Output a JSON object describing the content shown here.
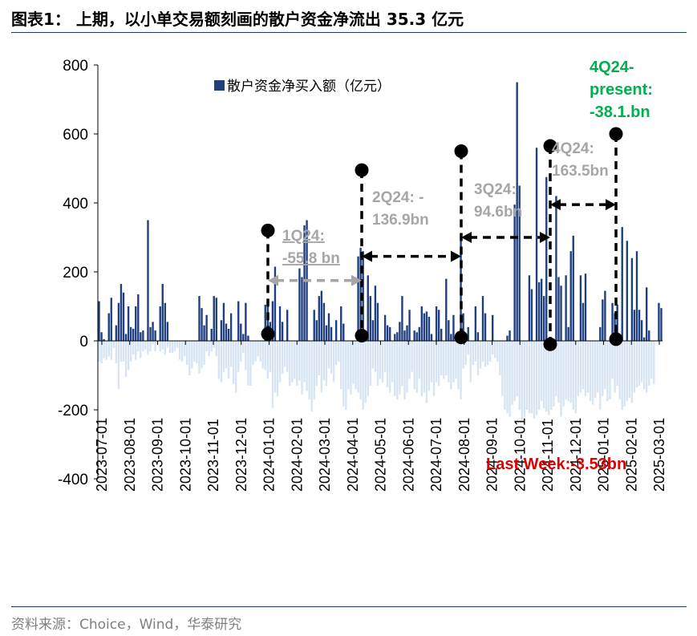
{
  "title": "图表1： 上期，以小单交易额刻画的散户资金净流出 35.3 亿元",
  "source": "资料来源：Choice，Wind，华泰研究",
  "chart_data": {
    "type": "bar",
    "legend": "散户资金净买入额（亿元）",
    "legend_position": "top-left",
    "grid": false,
    "ylim": [
      -400,
      800
    ],
    "yticks": [
      "800",
      "600",
      "400",
      "200",
      "0",
      "-200",
      "-400"
    ],
    "xticks": [
      "2023-07-01",
      "2023-08-01",
      "2023-09-01",
      "2023-10-01",
      "2023-11-01",
      "2023-12-01",
      "2024-01-01",
      "2024-02-01",
      "2024-03-01",
      "2024-04-01",
      "2024-05-01",
      "2024-06-01",
      "2024-07-01",
      "2024-08-01",
      "2024-09-01",
      "2024-10-01",
      "2024-11-01",
      "2024-12-01",
      "2025-01-01",
      "2025-02-01",
      "2025-03-01"
    ],
    "colors": {
      "positive": "#1f3f7f",
      "negative": "#d6e4f3",
      "black": "#000000",
      "gray_arrow": "#a6a6a6"
    },
    "series": [
      {
        "name": "散户资金净买入额（亿元）",
        "note": "daily values, 2023-07-01 to 2025-03-05 (approx.)"
      }
    ],
    "positive_values": [
      115,
      25,
      5,
      0,
      80,
      125,
      0,
      45,
      110,
      165,
      140,
      20,
      100,
      40,
      35,
      100,
      135,
      25,
      30,
      0,
      350,
      40,
      55,
      30,
      0,
      100,
      165,
      110,
      55,
      0,
      0,
      0,
      0,
      0,
      0,
      0,
      0,
      0,
      0,
      0,
      0,
      130,
      95,
      45,
      75,
      0,
      35,
      130,
      125,
      0,
      60,
      110,
      50,
      35,
      80,
      0,
      0,
      115,
      50,
      20,
      110,
      15,
      0,
      0,
      0,
      0,
      0,
      0,
      105,
      100,
      55,
      115,
      215,
      0,
      100,
      55,
      0,
      90,
      0,
      0,
      0,
      0,
      210,
      185,
      335,
      350,
      0,
      0,
      90,
      60,
      130,
      145,
      110,
      45,
      80,
      40,
      0,
      60,
      0,
      100,
      50,
      0,
      0,
      0,
      0,
      0,
      245,
      270,
      260,
      0,
      190,
      130,
      60,
      160,
      110,
      0,
      0,
      75,
      45,
      40,
      0,
      20,
      25,
      55,
      130,
      30,
      45,
      90,
      0,
      30,
      25,
      40,
      100,
      80,
      85,
      70,
      20,
      0,
      100,
      90,
      35,
      0,
      180,
      60,
      20,
      75,
      0,
      0,
      310,
      80,
      0,
      40,
      0,
      0,
      100,
      25,
      0,
      130,
      80,
      0,
      0,
      75,
      0,
      0,
      0,
      0,
      0,
      15,
      30,
      0,
      395,
      750,
      450,
      0,
      0,
      0,
      190,
      150,
      0,
      560,
      170,
      180,
      130,
      475,
      0,
      0,
      0,
      420,
      185,
      160,
      0,
      190,
      40,
      260,
      305,
      0,
      0,
      190,
      110,
      195,
      0,
      0,
      0,
      0,
      0,
      40,
      120,
      145,
      0,
      0,
      110,
      80,
      105,
      0,
      330,
      0,
      290,
      0,
      240,
      90,
      260,
      90,
      60,
      10,
      155,
      30,
      0,
      0,
      0,
      110,
      95
    ],
    "negative_values": [
      -60,
      -65,
      -50,
      -55,
      -45,
      -55,
      -20,
      -65,
      -140,
      -60,
      -60,
      -105,
      -85,
      -60,
      -40,
      -55,
      -30,
      -50,
      -30,
      -25,
      -40,
      -30,
      -10,
      -30,
      -10,
      -30,
      -25,
      -40,
      -20,
      -35,
      -35,
      -30,
      -20,
      -55,
      -60,
      -45,
      -70,
      -100,
      -80,
      -60,
      -65,
      -95,
      -80,
      -70,
      -30,
      -45,
      -30,
      -20,
      -45,
      -110,
      -120,
      -90,
      -80,
      -110,
      -75,
      -125,
      -150,
      -90,
      -60,
      -35,
      -85,
      -130,
      -130,
      -70,
      -60,
      -45,
      -60,
      -80,
      -85,
      -110,
      -90,
      -195,
      -150,
      -160,
      -120,
      -95,
      -75,
      -90,
      -130,
      -120,
      -110,
      -130,
      -115,
      -155,
      -120,
      -145,
      -170,
      -205,
      -170,
      -130,
      -100,
      -150,
      -115,
      -130,
      -80,
      -95,
      -120,
      -70,
      -60,
      -140,
      -190,
      -200,
      -140,
      -155,
      -125,
      -140,
      -150,
      -170,
      -200,
      -180,
      -160,
      -130,
      -80,
      -90,
      -130,
      -110,
      -120,
      -90,
      -135,
      -150,
      -120,
      -160,
      -170,
      -155,
      -130,
      -170,
      -150,
      -110,
      -90,
      -140,
      -150,
      -110,
      -160,
      -150,
      -180,
      -145,
      -120,
      -160,
      -120,
      -130,
      -100,
      -110,
      -100,
      -120,
      -140,
      -120,
      -110,
      -140,
      -170,
      -80,
      -70,
      -40,
      -120,
      -70,
      -60,
      -100,
      -80,
      -60,
      -75,
      -70,
      -60,
      -40,
      -50,
      -60,
      -100,
      -160,
      -200,
      -210,
      -220,
      -185,
      -175,
      -160,
      -200,
      -230,
      -220,
      -200,
      -210,
      -210,
      -225,
      -215,
      -200,
      -175,
      -195,
      -205,
      -215,
      -200,
      -190,
      -160,
      -180,
      -220,
      -190,
      -170,
      -175,
      -180,
      -200,
      -210,
      -160,
      -150,
      -140,
      -160,
      -150,
      -175,
      -185,
      -165,
      -150,
      -200,
      -160,
      -140,
      -175,
      -170,
      -110,
      -150,
      -130,
      -170,
      -200,
      -190,
      -175,
      -165,
      -180,
      -150,
      -135,
      -130,
      -120,
      -140,
      -150,
      -130,
      -110,
      -125
    ],
    "annotations": [
      {
        "label_line1": "1Q24:",
        "label_line2": "-55.8 bn",
        "color": "gray",
        "style": "underline-strike"
      },
      {
        "label_line1": "2Q24: -",
        "label_line2": "136.9bn",
        "color": "gray"
      },
      {
        "label_line1": "3Q24:",
        "label_line2": "94.6bn",
        "color": "gray"
      },
      {
        "label_line1": "4Q24:",
        "label_line2": "163.5bn",
        "color": "gray"
      },
      {
        "label_line1": "4Q24-",
        "label_line2": "present:",
        "label_line3": "-38.1.bn",
        "color": "green"
      },
      {
        "label_line1": "Last Week:-3.53bn",
        "color": "red"
      }
    ],
    "period_markers": [
      {
        "date": "2024-01-01",
        "top_value": 320,
        "bottom_value": 20
      },
      {
        "date": "2024-04-01",
        "top_value": 495,
        "bottom_value": 15
      },
      {
        "date": "2024-07-01",
        "top_value": 550,
        "bottom_value": 10
      },
      {
        "date": "2024-10-01",
        "top_value": 565,
        "bottom_value": -10
      },
      {
        "date": "2025-01-01",
        "top_value": 600,
        "bottom_value": 5
      }
    ]
  }
}
